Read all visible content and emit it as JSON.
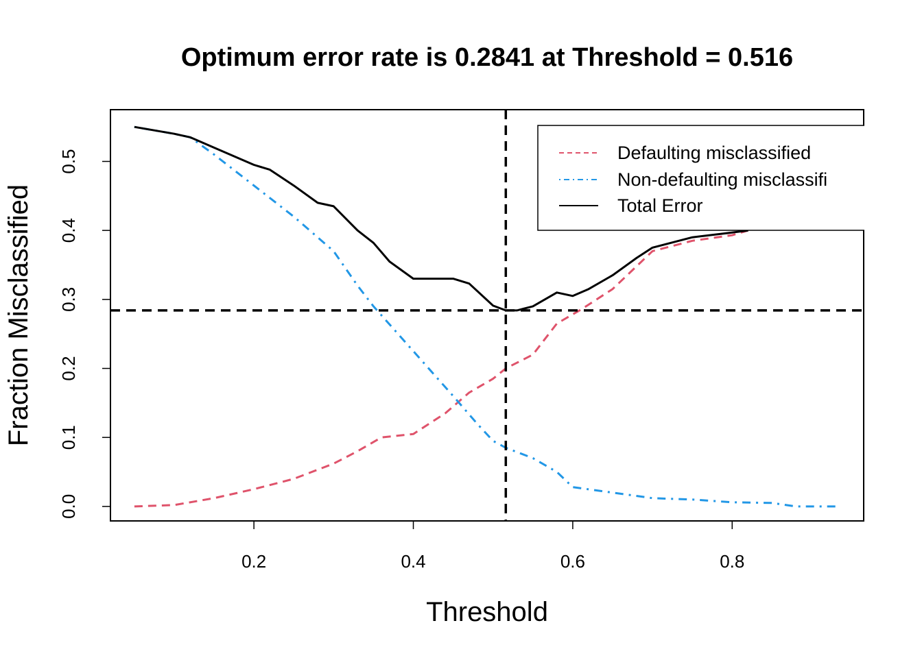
{
  "chart_data": {
    "type": "line",
    "title": "Optimum error rate is 0.2841 at Threshold = 0.516",
    "xlabel": "Threshold",
    "ylabel": "Fraction Misclassified",
    "xlim": [
      0.02,
      0.965
    ],
    "ylim": [
      -0.021,
      0.575
    ],
    "x_ticks": [
      0.2,
      0.4,
      0.6,
      0.8
    ],
    "x_tick_labels": [
      "0.2",
      "0.4",
      "0.6",
      "0.8"
    ],
    "y_ticks": [
      0.0,
      0.1,
      0.2,
      0.3,
      0.4,
      0.5
    ],
    "y_tick_labels": [
      "0.0",
      "0.1",
      "0.2",
      "0.3",
      "0.4",
      "0.5"
    ],
    "grid": false,
    "legend_position": "top-right",
    "optimum": {
      "threshold": 0.516,
      "error_rate": 0.2841
    },
    "series": [
      {
        "name": "Defaulting misclassified",
        "color": "#DF536B",
        "dash": "dashed",
        "x": [
          0.05,
          0.1,
          0.15,
          0.2,
          0.25,
          0.3,
          0.33,
          0.36,
          0.4,
          0.44,
          0.47,
          0.5,
          0.516,
          0.55,
          0.58,
          0.61,
          0.65,
          0.7,
          0.75,
          0.8,
          0.82
        ],
        "y": [
          0.0,
          0.002,
          0.012,
          0.025,
          0.04,
          0.062,
          0.08,
          0.1,
          0.105,
          0.135,
          0.165,
          0.185,
          0.2,
          0.22,
          0.265,
          0.285,
          0.315,
          0.37,
          0.385,
          0.393,
          0.4
        ]
      },
      {
        "name": "Non-defaulting misclassifi",
        "color": "#2297E6",
        "dash": "dotdash",
        "x": [
          0.05,
          0.1,
          0.12,
          0.15,
          0.2,
          0.25,
          0.3,
          0.33,
          0.35,
          0.4,
          0.45,
          0.48,
          0.5,
          0.516,
          0.55,
          0.58,
          0.6,
          0.65,
          0.7,
          0.75,
          0.8,
          0.85,
          0.88,
          0.93
        ],
        "y": [
          0.55,
          0.54,
          0.535,
          0.51,
          0.465,
          0.42,
          0.37,
          0.32,
          0.29,
          0.225,
          0.16,
          0.12,
          0.095,
          0.085,
          0.07,
          0.05,
          0.028,
          0.02,
          0.012,
          0.01,
          0.006,
          0.005,
          0.0,
          0.0
        ]
      },
      {
        "name": "Total Error",
        "color": "#000000",
        "dash": "solid",
        "x": [
          0.05,
          0.1,
          0.12,
          0.15,
          0.2,
          0.22,
          0.25,
          0.28,
          0.3,
          0.33,
          0.35,
          0.37,
          0.4,
          0.43,
          0.45,
          0.47,
          0.5,
          0.516,
          0.53,
          0.55,
          0.58,
          0.6,
          0.62,
          0.65,
          0.68,
          0.7,
          0.75,
          0.8,
          0.82
        ],
        "y": [
          0.55,
          0.54,
          0.535,
          0.52,
          0.495,
          0.488,
          0.465,
          0.44,
          0.435,
          0.4,
          0.382,
          0.355,
          0.33,
          0.33,
          0.33,
          0.323,
          0.291,
          0.2841,
          0.2841,
          0.29,
          0.31,
          0.305,
          0.315,
          0.335,
          0.36,
          0.375,
          0.39,
          0.397,
          0.4
        ]
      }
    ]
  }
}
